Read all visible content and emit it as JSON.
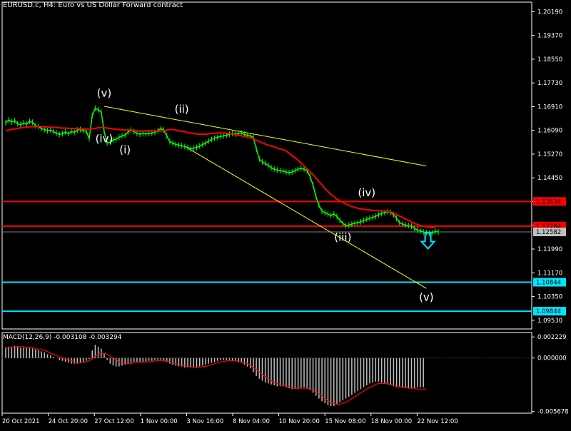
{
  "window": {
    "title": "EURUSD.c, H4:  Euro vs US Dollar Forward contract",
    "macd_title": "MACD(12,26,9) -0.003108 -0.003294"
  },
  "colors": {
    "background": "#000000",
    "candle": "#00ff00",
    "frame": "#ffffff",
    "moving_average": "#ff0000",
    "trendline": "#ffff00",
    "resistance_level": "#ff0000",
    "target_level": "#00e5ff",
    "price_line": "#808080",
    "price_tag": "#c0c0c0",
    "macd_histogram": "#c0c0c0",
    "macd_signal": "#ff0000",
    "down_arrow": "#00e5ff"
  },
  "icons": {
    "forecast_arrow": "hollow-down-arrow"
  },
  "chart_data": [
    {
      "type": "line",
      "title": "EURUSD.c, H4:  Euro vs US Dollar Forward contract",
      "series_style": "candlestick",
      "yaxis": {
        "ticks": [
          "1.20190",
          "1.19370",
          "1.18550",
          "1.17730",
          "1.16910",
          "1.16090",
          "1.15270",
          "1.14450",
          "1.13630",
          "1.12810",
          "1.11990",
          "1.11170",
          "1.10350",
          "1.09530"
        ],
        "ylim": [
          1.0923,
          1.2052
        ]
      },
      "xaxis": {
        "ticks": [
          "20 Oct 2021",
          "24 Oct 20:00",
          "27 Oct 12:00",
          "1 Nov 00:00",
          "3 Nov 16:00",
          "8 Nov 04:00",
          "10 Nov 20:00",
          "15 Nov 08:00",
          "18 Nov 00:00",
          "22 Nov 12:00"
        ]
      },
      "series": [
        {
          "values": [
            1.1635,
            1.1645,
            1.1638,
            1.1642,
            1.1632,
            1.1628,
            1.1635,
            1.163,
            1.164,
            1.1637,
            1.1625,
            1.1622,
            1.1615,
            1.1612,
            1.1608,
            1.161,
            1.1605,
            1.16,
            1.1595,
            1.1598,
            1.1603,
            1.1598,
            1.1605,
            1.1602,
            1.161,
            1.1612,
            1.1608,
            1.1606,
            1.158,
            1.166,
            1.1685,
            1.168,
            1.1672,
            1.1605,
            1.1565,
            1.1568,
            1.1576,
            1.1578,
            1.1585,
            1.159,
            1.1592,
            1.1603,
            1.161,
            1.1605,
            1.1598,
            1.1596,
            1.1598,
            1.1597,
            1.1598,
            1.16,
            1.1602,
            1.1608,
            1.1615,
            1.161,
            1.159,
            1.157,
            1.1565,
            1.156,
            1.1558,
            1.1556,
            1.1553,
            1.155,
            1.1545,
            1.1548,
            1.155,
            1.1555,
            1.156,
            1.1565,
            1.1572,
            1.1578,
            1.1582,
            1.1585,
            1.1588,
            1.159,
            1.1592,
            1.1596,
            1.1598,
            1.1596,
            1.1598,
            1.16,
            1.1595,
            1.1592,
            1.159,
            1.1585,
            1.1545,
            1.151,
            1.15,
            1.1495,
            1.1488,
            1.148,
            1.1475,
            1.1472,
            1.147,
            1.1468,
            1.1465,
            1.1463,
            1.1465,
            1.147,
            1.1475,
            1.1478,
            1.1475,
            1.147,
            1.145,
            1.142,
            1.138,
            1.135,
            1.133,
            1.1325,
            1.132,
            1.1315,
            1.132,
            1.1312,
            1.1298,
            1.1288,
            1.128,
            1.1282,
            1.1285,
            1.1288,
            1.129,
            1.1293,
            1.1298,
            1.1302,
            1.1305,
            1.1308,
            1.1312,
            1.1318,
            1.1322,
            1.1325,
            1.1328,
            1.1325,
            1.1318,
            1.1305,
            1.129,
            1.1285,
            1.1282,
            1.128,
            1.1278,
            1.127,
            1.1265,
            1.1262,
            1.1258,
            1.1256,
            1.1253,
            1.1255,
            1.126,
            1.1258
          ]
        },
        {
          "values": [
            1.1608,
            1.161,
            1.1612,
            1.1614,
            1.1616,
            1.1618,
            1.1619,
            1.162,
            1.1621,
            1.1622,
            1.1622,
            1.1622,
            1.1622,
            1.1621,
            1.1621,
            1.162,
            1.162,
            1.1619,
            1.1618,
            1.1617,
            1.1617,
            1.1616,
            1.1616,
            1.1615,
            1.1615,
            1.1614,
            1.1614,
            1.1614,
            1.1613,
            1.1614,
            1.1616,
            1.1618,
            1.1619,
            1.1619,
            1.1617,
            1.1616,
            1.1614,
            1.1613,
            1.1612,
            1.1611,
            1.161,
            1.161,
            1.161,
            1.1609,
            1.1608,
            1.1607,
            1.1607,
            1.1607,
            1.1608,
            1.1608,
            1.1607,
            1.1606,
            1.1606,
            1.1608,
            1.161,
            1.1612,
            1.1612,
            1.161,
            1.1608,
            1.1606,
            1.1604,
            1.1602,
            1.16,
            1.1598,
            1.1597,
            1.1596,
            1.1596,
            1.1596,
            1.1597,
            1.1598,
            1.1599,
            1.16,
            1.16,
            1.16,
            1.1599,
            1.1598,
            1.1596,
            1.1594,
            1.1592,
            1.159,
            1.1588,
            1.1586,
            1.1584,
            1.158,
            1.1575,
            1.157,
            1.1566,
            1.1562,
            1.1558,
            1.1555,
            1.1552,
            1.1548,
            1.1545,
            1.1542,
            1.1538,
            1.153,
            1.1522,
            1.1514,
            1.1506,
            1.1496,
            1.1486,
            1.1476,
            1.1466,
            1.1456,
            1.1444,
            1.1432,
            1.142,
            1.1408,
            1.1398,
            1.1388,
            1.138,
            1.1372,
            1.1366,
            1.136,
            1.1355,
            1.135,
            1.1346,
            1.1343,
            1.134,
            1.1338,
            1.1336,
            1.1335,
            1.1334,
            1.1333,
            1.1332,
            1.1332,
            1.1331,
            1.133,
            1.1329,
            1.1327,
            1.1323,
            1.1318,
            1.1313,
            1.1308,
            1.1303,
            1.1298,
            1.1293,
            1.1288,
            1.1284,
            1.128,
            1.1278,
            1.1276,
            1.1275,
            1.1274,
            1.1274
          ]
        }
      ],
      "horizontal_lines": [
        {
          "value": 1.13634,
          "label": "1.13634",
          "color": "#ff0000"
        },
        {
          "value": 1.12784,
          "label": "1.12784",
          "color": "#ff0000"
        },
        {
          "value": 1.12582,
          "label": "1.12582",
          "color": "#808080"
        },
        {
          "value": 1.10844,
          "label": "1.10844",
          "color": "#00e5ff"
        },
        {
          "value": 1.09844,
          "label": "1.09844",
          "color": "#00e5ff"
        }
      ],
      "trendlines": [
        {
          "from": {
            "index": 33,
            "y": 1.1692
          },
          "to": {
            "index": 141,
            "y": 1.1486
          }
        },
        {
          "from": {
            "index": 60,
            "y": 1.1554
          },
          "to": {
            "index": 141,
            "y": 1.1063
          }
        }
      ],
      "wave_labels": [
        {
          "text": "(v)",
          "index": 33,
          "y": 1.1725
        },
        {
          "text": "(iv)",
          "index": 33,
          "y": 1.1567
        },
        {
          "text": "(i)",
          "index": 40,
          "y": 1.153
        },
        {
          "text": "(ii)",
          "index": 59,
          "y": 1.167
        },
        {
          "text": "(iii)",
          "index": 113,
          "y": 1.1227
        },
        {
          "text": "(iv)",
          "index": 121,
          "y": 1.1381
        },
        {
          "text": "(v)",
          "index": 141,
          "y": 1.102
        }
      ],
      "forecast_arrow": {
        "index": 142,
        "y": 1.122,
        "direction": "down"
      }
    },
    {
      "type": "bar",
      "title": "MACD(12,26,9) -0.003108 -0.003294",
      "yaxis": {
        "ticks": [
          "0.002229",
          "0.000000",
          "-0.005678"
        ],
        "ylim": [
          -0.00585,
          0.0027
        ]
      },
      "histogram": [
        0.0011,
        0.0012,
        0.0012,
        0.0013,
        0.0012,
        0.0011,
        0.0011,
        0.0011,
        0.0011,
        0.001,
        0.0009,
        0.0008,
        0.0007,
        0.0006,
        0.0004,
        0.0003,
        0.0001,
        0.0,
        -0.0002,
        -0.0003,
        -0.0004,
        -0.0005,
        -0.0006,
        -0.0006,
        -0.0006,
        -0.0005,
        -0.0004,
        -0.0003,
        -0.0001,
        0.0008,
        0.0014,
        0.0012,
        0.001,
        0.0005,
        -0.0002,
        -0.0006,
        -0.0008,
        -0.0009,
        -0.0009,
        -0.0008,
        -0.0007,
        -0.0006,
        -0.0005,
        -0.0004,
        -0.0004,
        -0.0004,
        -0.0004,
        -0.0004,
        -0.0003,
        -0.0003,
        -0.0002,
        -0.0002,
        -0.0002,
        -0.0003,
        -0.0004,
        -0.0006,
        -0.0007,
        -0.0008,
        -0.0009,
        -0.0009,
        -0.001,
        -0.001,
        -0.001,
        -0.001,
        -0.001,
        -0.0009,
        -0.0008,
        -0.0007,
        -0.0006,
        -0.0005,
        -0.0004,
        -0.0003,
        -0.0002,
        -0.0002,
        -0.0002,
        -0.0002,
        -0.0003,
        -0.0003,
        -0.0004,
        -0.0005,
        -0.0007,
        -0.0009,
        -0.0011,
        -0.0015,
        -0.0019,
        -0.0022,
        -0.0024,
        -0.0026,
        -0.0027,
        -0.0028,
        -0.0029,
        -0.003,
        -0.003,
        -0.003,
        -0.0031,
        -0.0032,
        -0.0033,
        -0.0033,
        -0.0033,
        -0.0032,
        -0.0031,
        -0.0032,
        -0.0034,
        -0.0037,
        -0.004,
        -0.0043,
        -0.0046,
        -0.0048,
        -0.005,
        -0.0051,
        -0.0051,
        -0.0049,
        -0.0047,
        -0.0045,
        -0.0043,
        -0.0041,
        -0.0039,
        -0.0037,
        -0.0035,
        -0.0033,
        -0.0031,
        -0.0029,
        -0.0027,
        -0.0026,
        -0.0025,
        -0.0025,
        -0.0026,
        -0.0027,
        -0.0028,
        -0.0029,
        -0.003,
        -0.0031,
        -0.0031,
        -0.0032,
        -0.0032,
        -0.0032,
        -0.0032,
        -0.0032,
        -0.0031,
        -0.0031,
        -0.0031
      ],
      "signal": [
        0.001,
        0.0011,
        0.0011,
        0.0012,
        0.0012,
        0.0012,
        0.0012,
        0.0011,
        0.0011,
        0.0011,
        0.001,
        0.0009,
        0.0009,
        0.0008,
        0.0007,
        0.0005,
        0.0004,
        0.0003,
        0.0001,
        0.0,
        -0.0001,
        -0.0002,
        -0.0003,
        -0.0004,
        -0.0005,
        -0.0005,
        -0.0005,
        -0.0004,
        -0.0003,
        -0.0001,
        0.0002,
        0.0004,
        0.0005,
        0.0005,
        0.0004,
        0.0002,
        0.0,
        -0.0002,
        -0.0004,
        -0.0005,
        -0.0006,
        -0.0006,
        -0.0006,
        -0.0005,
        -0.0005,
        -0.0005,
        -0.0005,
        -0.0004,
        -0.0004,
        -0.0004,
        -0.0003,
        -0.0003,
        -0.0003,
        -0.0003,
        -0.0003,
        -0.0004,
        -0.0005,
        -0.0006,
        -0.0007,
        -0.0008,
        -0.0008,
        -0.0009,
        -0.0009,
        -0.001,
        -0.001,
        -0.001,
        -0.0009,
        -0.0009,
        -0.0008,
        -0.0007,
        -0.0006,
        -0.0005,
        -0.0004,
        -0.0004,
        -0.0003,
        -0.0003,
        -0.0003,
        -0.0003,
        -0.0004,
        -0.0004,
        -0.0005,
        -0.0006,
        -0.0008,
        -0.001,
        -0.0012,
        -0.0015,
        -0.0017,
        -0.002,
        -0.0022,
        -0.0024,
        -0.0026,
        -0.0027,
        -0.0028,
        -0.0029,
        -0.003,
        -0.003,
        -0.0031,
        -0.0032,
        -0.0032,
        -0.0032,
        -0.0032,
        -0.0032,
        -0.0033,
        -0.0034,
        -0.0036,
        -0.0038,
        -0.004,
        -0.0043,
        -0.0045,
        -0.0047,
        -0.0048,
        -0.0049,
        -0.0049,
        -0.0048,
        -0.0047,
        -0.0045,
        -0.0043,
        -0.0041,
        -0.0039,
        -0.0037,
        -0.0035,
        -0.0033,
        -0.0031,
        -0.003,
        -0.0028,
        -0.0027,
        -0.0027,
        -0.0027,
        -0.0027,
        -0.0028,
        -0.0029,
        -0.003,
        -0.003,
        -0.0031,
        -0.0031,
        -0.0032,
        -0.0032,
        -0.0032,
        -0.0033,
        -0.0033,
        -0.0033,
        -0.0033
      ]
    }
  ]
}
